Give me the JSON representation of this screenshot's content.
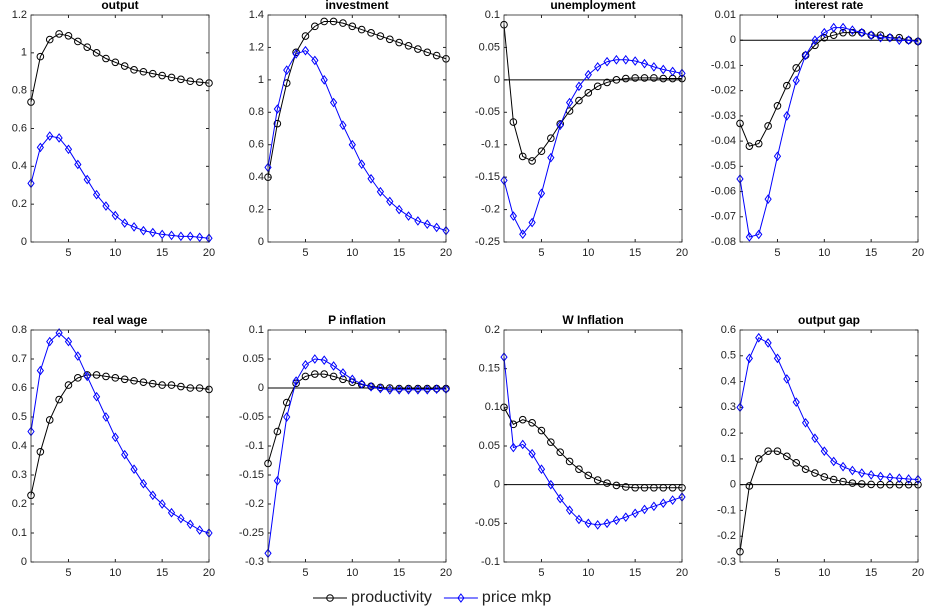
{
  "chart_data": [
    {
      "type": "line",
      "title": "output",
      "x": [
        1,
        2,
        3,
        4,
        5,
        6,
        7,
        8,
        9,
        10,
        11,
        12,
        13,
        14,
        15,
        16,
        17,
        18,
        19,
        20
      ],
      "xlim": [
        1,
        20
      ],
      "xticks": [
        5,
        10,
        15,
        20
      ],
      "ylim": [
        0,
        1.2
      ],
      "yticks": [
        0,
        0.2,
        0.4,
        0.6,
        0.8,
        1,
        1.2
      ],
      "zero_line": false,
      "series": [
        {
          "name": "productivity",
          "color": "#000000",
          "marker": "o",
          "values": [
            0.74,
            0.98,
            1.07,
            1.1,
            1.09,
            1.06,
            1.03,
            1.0,
            0.97,
            0.95,
            0.93,
            0.91,
            0.9,
            0.89,
            0.88,
            0.87,
            0.86,
            0.85,
            0.845,
            0.84
          ]
        },
        {
          "name": "price mkp",
          "color": "#0000ff",
          "marker": "d",
          "values": [
            0.31,
            0.5,
            0.56,
            0.55,
            0.49,
            0.41,
            0.33,
            0.25,
            0.19,
            0.14,
            0.1,
            0.08,
            0.06,
            0.05,
            0.04,
            0.035,
            0.03,
            0.03,
            0.025,
            0.02
          ]
        }
      ]
    },
    {
      "type": "line",
      "title": "investment",
      "x": [
        1,
        2,
        3,
        4,
        5,
        6,
        7,
        8,
        9,
        10,
        11,
        12,
        13,
        14,
        15,
        16,
        17,
        18,
        19,
        20
      ],
      "xlim": [
        1,
        20
      ],
      "xticks": [
        5,
        10,
        15,
        20
      ],
      "ylim": [
        0,
        1.4
      ],
      "yticks": [
        0,
        0.2,
        0.4,
        0.6,
        0.8,
        1,
        1.2,
        1.4
      ],
      "zero_line": false,
      "series": [
        {
          "name": "productivity",
          "color": "#000000",
          "marker": "o",
          "values": [
            0.4,
            0.73,
            0.98,
            1.17,
            1.27,
            1.33,
            1.36,
            1.36,
            1.35,
            1.33,
            1.31,
            1.29,
            1.27,
            1.25,
            1.23,
            1.21,
            1.19,
            1.17,
            1.15,
            1.13
          ]
        },
        {
          "name": "price mkp",
          "color": "#0000ff",
          "marker": "d",
          "values": [
            0.46,
            0.82,
            1.06,
            1.16,
            1.18,
            1.12,
            1.0,
            0.86,
            0.72,
            0.6,
            0.48,
            0.39,
            0.31,
            0.25,
            0.2,
            0.16,
            0.13,
            0.11,
            0.09,
            0.07
          ]
        }
      ]
    },
    {
      "type": "line",
      "title": "unemployment",
      "x": [
        1,
        2,
        3,
        4,
        5,
        6,
        7,
        8,
        9,
        10,
        11,
        12,
        13,
        14,
        15,
        16,
        17,
        18,
        19,
        20
      ],
      "xlim": [
        1,
        20
      ],
      "xticks": [
        5,
        10,
        15,
        20
      ],
      "ylim": [
        -0.25,
        0.1
      ],
      "yticks": [
        -0.25,
        -0.2,
        -0.15,
        -0.1,
        -0.05,
        0,
        0.05,
        0.1
      ],
      "zero_line": true,
      "series": [
        {
          "name": "productivity",
          "color": "#000000",
          "marker": "o",
          "values": [
            0.085,
            -0.065,
            -0.118,
            -0.125,
            -0.11,
            -0.09,
            -0.068,
            -0.048,
            -0.032,
            -0.02,
            -0.01,
            -0.004,
            0,
            0.002,
            0.003,
            0.003,
            0.003,
            0.002,
            0.002,
            0.002
          ]
        },
        {
          "name": "price mkp",
          "color": "#0000ff",
          "marker": "d",
          "values": [
            -0.155,
            -0.21,
            -0.238,
            -0.22,
            -0.175,
            -0.12,
            -0.07,
            -0.035,
            -0.01,
            0.008,
            0.02,
            0.028,
            0.031,
            0.031,
            0.029,
            0.025,
            0.02,
            0.016,
            0.013,
            0.01
          ]
        }
      ]
    },
    {
      "type": "line",
      "title": "interest rate",
      "x": [
        1,
        2,
        3,
        4,
        5,
        6,
        7,
        8,
        9,
        10,
        11,
        12,
        13,
        14,
        15,
        16,
        17,
        18,
        19,
        20
      ],
      "xlim": [
        1,
        20
      ],
      "xticks": [
        5,
        10,
        15,
        20
      ],
      "ylim": [
        -0.08,
        0.01
      ],
      "yticks": [
        -0.08,
        -0.07,
        -0.06,
        -0.05,
        -0.04,
        -0.03,
        -0.02,
        -0.01,
        0,
        0.01
      ],
      "zero_line": true,
      "series": [
        {
          "name": "productivity",
          "color": "#000000",
          "marker": "o",
          "values": [
            -0.033,
            -0.042,
            -0.041,
            -0.034,
            -0.026,
            -0.018,
            -0.011,
            -0.006,
            -0.002,
            0.001,
            0.002,
            0.003,
            0.003,
            0.003,
            0.002,
            0.002,
            0.001,
            0.001,
            0,
            -0.0005
          ]
        },
        {
          "name": "price mkp",
          "color": "#0000ff",
          "marker": "d",
          "values": [
            -0.055,
            -0.078,
            -0.077,
            -0.063,
            -0.046,
            -0.03,
            -0.016,
            -0.006,
            0,
            0.003,
            0.005,
            0.005,
            0.004,
            0.003,
            0.002,
            0.001,
            0.001,
            0,
            0,
            -0.0005
          ]
        }
      ]
    },
    {
      "type": "line",
      "title": "real wage",
      "x": [
        1,
        2,
        3,
        4,
        5,
        6,
        7,
        8,
        9,
        10,
        11,
        12,
        13,
        14,
        15,
        16,
        17,
        18,
        19,
        20
      ],
      "xlim": [
        1,
        20
      ],
      "xticks": [
        5,
        10,
        15,
        20
      ],
      "ylim": [
        0,
        0.8
      ],
      "yticks": [
        0,
        0.1,
        0.2,
        0.3,
        0.4,
        0.5,
        0.6,
        0.7,
        0.8
      ],
      "zero_line": false,
      "series": [
        {
          "name": "productivity",
          "color": "#000000",
          "marker": "o",
          "values": [
            0.23,
            0.38,
            0.49,
            0.56,
            0.61,
            0.635,
            0.645,
            0.645,
            0.64,
            0.635,
            0.63,
            0.625,
            0.62,
            0.615,
            0.61,
            0.61,
            0.605,
            0.6,
            0.6,
            0.595
          ]
        },
        {
          "name": "price mkp",
          "color": "#0000ff",
          "marker": "d",
          "values": [
            0.45,
            0.66,
            0.76,
            0.79,
            0.76,
            0.71,
            0.64,
            0.57,
            0.5,
            0.43,
            0.37,
            0.32,
            0.27,
            0.23,
            0.2,
            0.17,
            0.15,
            0.13,
            0.11,
            0.1
          ]
        }
      ]
    },
    {
      "type": "line",
      "title": "P inflation",
      "x": [
        1,
        2,
        3,
        4,
        5,
        6,
        7,
        8,
        9,
        10,
        11,
        12,
        13,
        14,
        15,
        16,
        17,
        18,
        19,
        20
      ],
      "xlim": [
        1,
        20
      ],
      "xticks": [
        5,
        10,
        15,
        20
      ],
      "ylim": [
        -0.3,
        0.1
      ],
      "yticks": [
        -0.3,
        -0.25,
        -0.2,
        -0.15,
        -0.1,
        -0.05,
        0,
        0.05,
        0.1
      ],
      "zero_line": true,
      "series": [
        {
          "name": "productivity",
          "color": "#000000",
          "marker": "o",
          "values": [
            -0.13,
            -0.075,
            -0.025,
            0.008,
            0.02,
            0.024,
            0.024,
            0.02,
            0.015,
            0.01,
            0.006,
            0.003,
            0.001,
            0,
            -0.001,
            -0.001,
            -0.001,
            -0.001,
            -0.001,
            -0.001
          ]
        },
        {
          "name": "price mkp",
          "color": "#0000ff",
          "marker": "d",
          "values": [
            -0.285,
            -0.16,
            -0.05,
            0.012,
            0.04,
            0.05,
            0.048,
            0.038,
            0.026,
            0.015,
            0.007,
            0.002,
            -0.001,
            -0.003,
            -0.003,
            -0.003,
            -0.003,
            -0.003,
            -0.002,
            -0.002
          ]
        }
      ]
    },
    {
      "type": "line",
      "title": "W Inflation",
      "x": [
        1,
        2,
        3,
        4,
        5,
        6,
        7,
        8,
        9,
        10,
        11,
        12,
        13,
        14,
        15,
        16,
        17,
        18,
        19,
        20
      ],
      "xlim": [
        1,
        20
      ],
      "xticks": [
        5,
        10,
        15,
        20
      ],
      "ylim": [
        -0.1,
        0.2
      ],
      "yticks": [
        -0.1,
        -0.05,
        0,
        0.05,
        0.1,
        0.15,
        0.2
      ],
      "zero_line": true,
      "series": [
        {
          "name": "productivity",
          "color": "#000000",
          "marker": "o",
          "values": [
            0.1,
            0.078,
            0.084,
            0.08,
            0.07,
            0.055,
            0.042,
            0.03,
            0.02,
            0.012,
            0.006,
            0.002,
            -0.001,
            -0.003,
            -0.004,
            -0.004,
            -0.004,
            -0.004,
            -0.004,
            -0.004
          ]
        },
        {
          "name": "price mkp",
          "color": "#0000ff",
          "marker": "d",
          "values": [
            0.165,
            0.048,
            0.052,
            0.04,
            0.02,
            0,
            -0.018,
            -0.033,
            -0.045,
            -0.05,
            -0.052,
            -0.05,
            -0.046,
            -0.042,
            -0.037,
            -0.032,
            -0.028,
            -0.024,
            -0.02,
            -0.016
          ]
        }
      ]
    },
    {
      "type": "line",
      "title": "output gap",
      "x": [
        1,
        2,
        3,
        4,
        5,
        6,
        7,
        8,
        9,
        10,
        11,
        12,
        13,
        14,
        15,
        16,
        17,
        18,
        19,
        20
      ],
      "xlim": [
        1,
        20
      ],
      "xticks": [
        5,
        10,
        15,
        20
      ],
      "ylim": [
        -0.3,
        0.6
      ],
      "yticks": [
        -0.3,
        -0.2,
        -0.1,
        0,
        0.1,
        0.2,
        0.3,
        0.4,
        0.5,
        0.6
      ],
      "zero_line": true,
      "series": [
        {
          "name": "productivity",
          "color": "#000000",
          "marker": "o",
          "values": [
            -0.26,
            -0.005,
            0.1,
            0.13,
            0.13,
            0.11,
            0.085,
            0.06,
            0.045,
            0.03,
            0.02,
            0.012,
            0.006,
            0.003,
            0.001,
            0,
            0,
            0,
            0,
            0
          ]
        },
        {
          "name": "price mkp",
          "color": "#0000ff",
          "marker": "d",
          "values": [
            0.3,
            0.49,
            0.57,
            0.55,
            0.49,
            0.41,
            0.32,
            0.24,
            0.18,
            0.13,
            0.09,
            0.07,
            0.055,
            0.045,
            0.038,
            0.032,
            0.028,
            0.025,
            0.022,
            0.02
          ]
        }
      ]
    }
  ]
}
